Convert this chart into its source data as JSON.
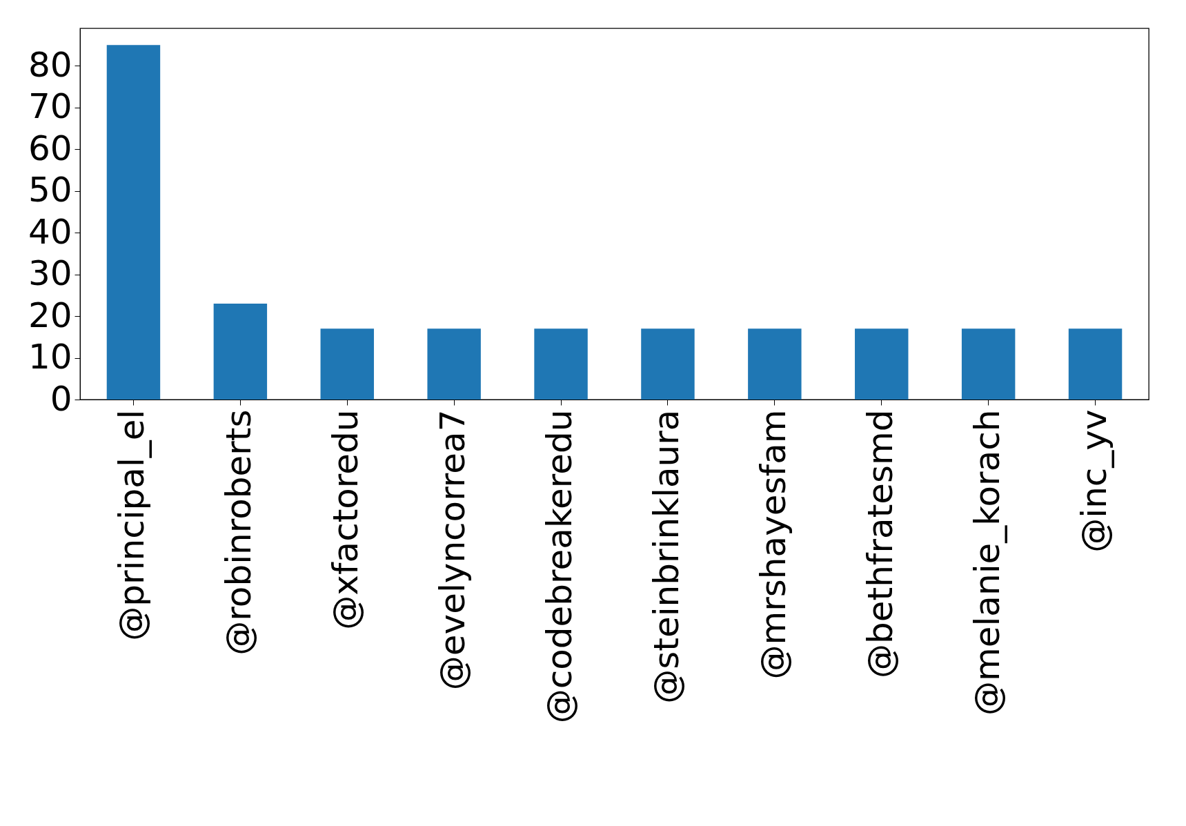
{
  "chart_data": {
    "type": "bar",
    "categories": [
      "@principal_el",
      "@robinroberts",
      "@xfactoredu",
      "@evelyncorrea7",
      "@codebreakeredu",
      "@steinbrinklaura",
      "@mrshayesfam",
      "@bethfratesmd",
      "@melanie_korach",
      "@inc_yv"
    ],
    "values": [
      85,
      23,
      17,
      17,
      17,
      17,
      17,
      17,
      17,
      17
    ],
    "color": "#1f77b4",
    "ylim": [
      0,
      89
    ],
    "yticks": [
      0,
      10,
      20,
      30,
      40,
      50,
      60,
      70,
      80
    ],
    "grid": false
  }
}
